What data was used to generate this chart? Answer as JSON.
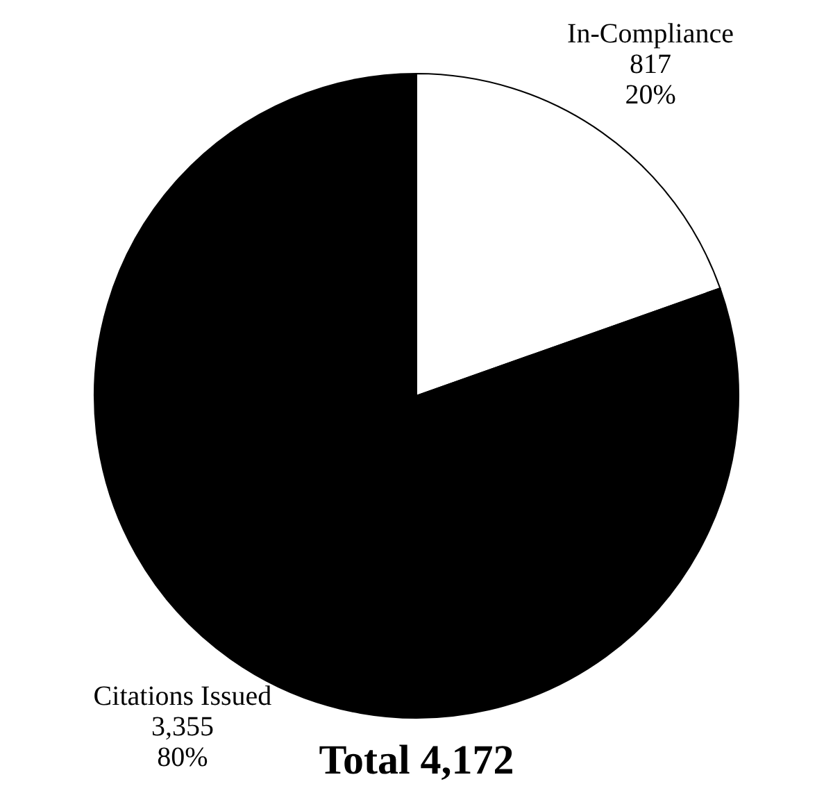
{
  "chart_data": {
    "type": "pie",
    "categories": [
      "In-Compliance",
      "Citations Issued"
    ],
    "values": [
      817,
      3355
    ],
    "colors": [
      "#ffffff",
      "#000000"
    ],
    "value_labels": [
      "817\n20%",
      "3,355\n80%"
    ],
    "annotations": [
      "Total 4,172"
    ]
  }
}
